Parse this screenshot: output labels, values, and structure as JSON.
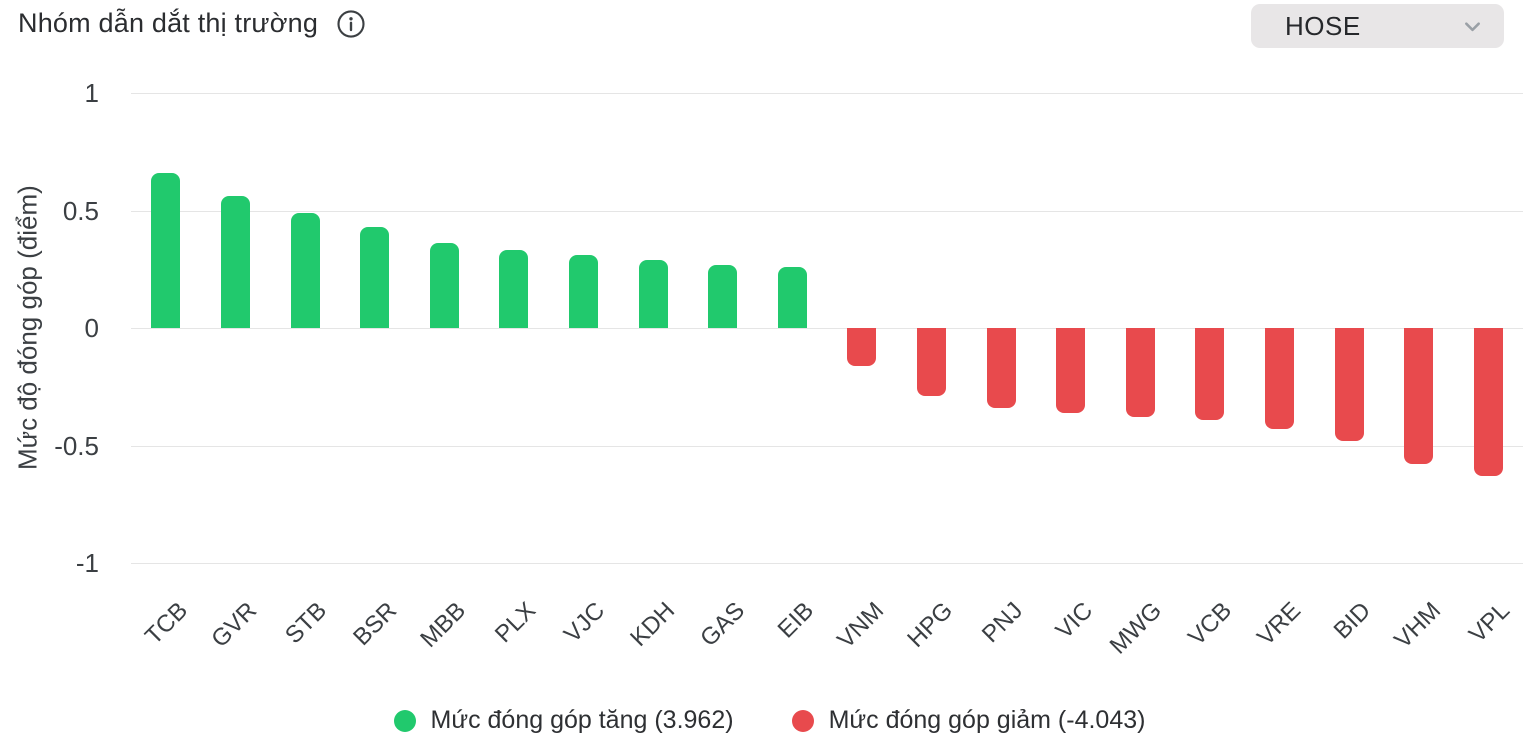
{
  "header": {
    "title": "Nhóm dẫn dắt thị trường",
    "info_icon": "info-circle-icon",
    "exchange_dropdown": {
      "value": "HOSE",
      "chevron_icon": "chevron-down-icon"
    }
  },
  "chart_data": {
    "type": "bar",
    "title": "Nhóm dẫn dắt thị trường",
    "xlabel": "",
    "ylabel": "Mức độ đóng góp (điểm)",
    "ylim": [
      -1,
      1
    ],
    "yticks": [
      1,
      0.5,
      0,
      -0.5,
      -1
    ],
    "grid": true,
    "categories": [
      "TCB",
      "GVR",
      "STB",
      "BSR",
      "MBB",
      "PLX",
      "VJC",
      "KDH",
      "GAS",
      "EIB",
      "VNM",
      "HPG",
      "PNJ",
      "VIC",
      "MWG",
      "VCB",
      "VRE",
      "BID",
      "VHM",
      "VPL"
    ],
    "values": [
      0.66,
      0.56,
      0.49,
      0.43,
      0.36,
      0.33,
      0.31,
      0.29,
      0.27,
      0.26,
      -0.16,
      -0.29,
      -0.34,
      -0.36,
      -0.38,
      -0.39,
      -0.43,
      -0.48,
      -0.58,
      -0.63
    ],
    "colors": {
      "positive": "#21c96d",
      "negative": "#e84a4d"
    },
    "legend_position": "bottom",
    "legend": [
      {
        "label": "Mức đóng góp tăng (3.962)",
        "color": "#21c96d"
      },
      {
        "label": "Mức đóng góp giảm (-4.043)",
        "color": "#e84a4d"
      }
    ]
  }
}
